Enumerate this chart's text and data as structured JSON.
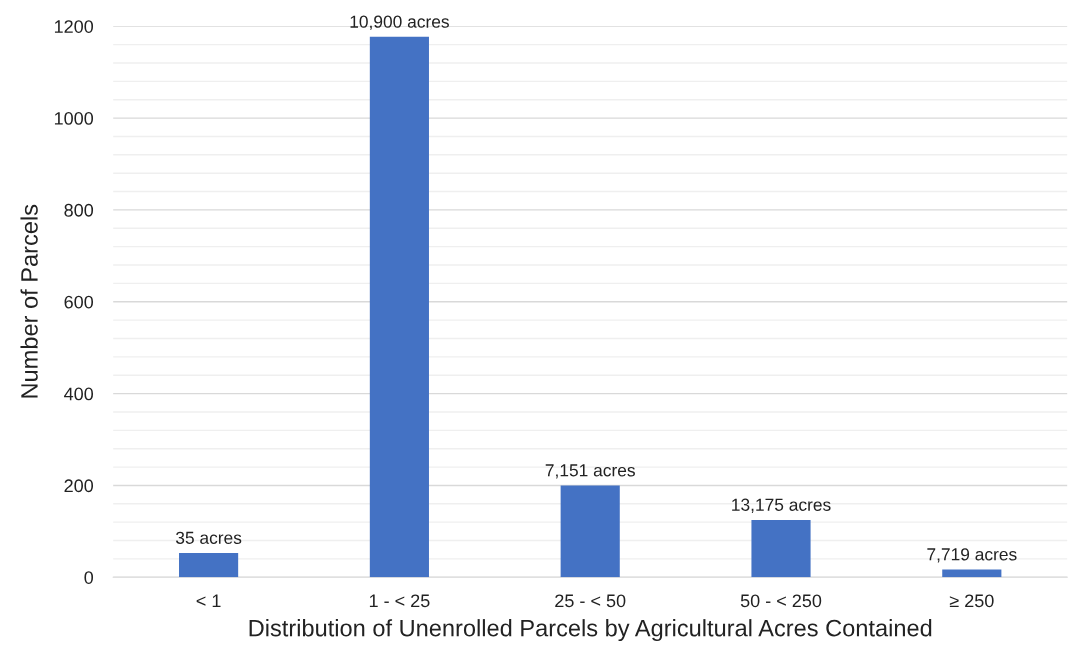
{
  "chart_data": {
    "type": "bar",
    "xlabel": "Distribution of Unenrolled Parcels by Agricultural Acres Contained",
    "ylabel": "Number of Parcels",
    "categories": [
      "< 1",
      "1 - < 25",
      "25 - < 50",
      "50 - < 250",
      "≥ 250"
    ],
    "values": [
      53,
      1177,
      200,
      125,
      17
    ],
    "annotations": [
      {
        "text": "35 acres",
        "x": "< 1",
        "y": 53
      },
      {
        "text": "10,900 acres",
        "x": "1 - < 25",
        "y": 1177
      },
      {
        "text": "7,151 acres",
        "x": "25 - < 50",
        "y": 200
      },
      {
        "text": "13,175 acres",
        "x": "50 - < 250",
        "y": 125
      },
      {
        "text": "7,719 acres",
        "x": "≥ 250",
        "y": 17
      }
    ],
    "color": "#4472c4",
    "ylim": [
      0,
      1200
    ],
    "yticks": [
      0,
      {
        "value": 40,
        "label": null
      },
      {
        "value": 80,
        "label": null
      },
      {
        "value": 120,
        "label": null
      },
      {
        "value": 160,
        "label": null
      },
      200,
      {
        "value": 240,
        "label": null
      },
      {
        "value": 280,
        "label": null
      },
      {
        "value": 320,
        "label": null
      },
      {
        "value": 360,
        "label": null
      },
      400,
      {
        "value": 440,
        "label": null
      },
      {
        "value": 480,
        "label": null
      },
      {
        "value": 520,
        "label": null
      },
      {
        "value": 560,
        "label": null
      },
      600,
      {
        "value": 640,
        "label": null
      },
      {
        "value": 680,
        "label": null
      },
      {
        "value": 720,
        "label": null
      },
      {
        "value": 760,
        "label": null
      },
      800,
      {
        "value": 840,
        "label": null
      },
      {
        "value": 880,
        "label": null
      },
      {
        "value": 920,
        "label": null
      },
      {
        "value": 960,
        "label": null
      },
      1000,
      {
        "value": 1040,
        "label": null
      },
      {
        "value": 1080,
        "label": null
      },
      {
        "value": 1120,
        "label": null
      },
      {
        "value": 1160,
        "label": null
      },
      1200
    ],
    "grid": "y"
  }
}
